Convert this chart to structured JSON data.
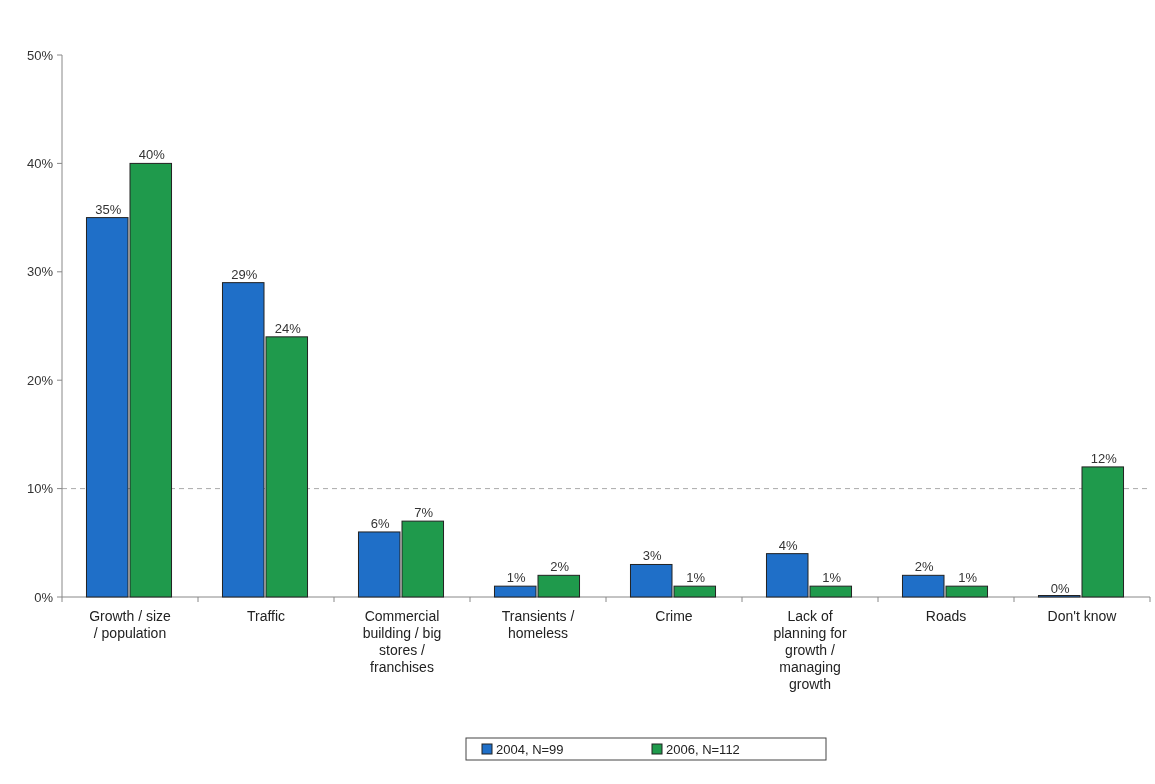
{
  "chart_data": {
    "type": "bar",
    "categories": [
      "Growth / size / population",
      "Traffic",
      "Commercial building / big stores / franchises",
      "Transients / homeless",
      "Crime",
      "Lack of planning for growth / managing growth",
      "Roads",
      "Don't know"
    ],
    "series": [
      {
        "name": "2004, N=99",
        "color": "#1f6fc8",
        "values": [
          35,
          29,
          6,
          1,
          3,
          4,
          2,
          0
        ],
        "value_labels": [
          "35%",
          "29%",
          "6%",
          "1%",
          "3%",
          "4%",
          "2%",
          "0%"
        ]
      },
      {
        "name": "2006, N=112",
        "color": "#1f9a4c",
        "values": [
          40,
          24,
          7,
          2,
          1,
          1,
          1,
          12
        ],
        "value_labels": [
          "40%",
          "24%",
          "7%",
          "2%",
          "1%",
          "1%",
          "1%",
          "12%"
        ]
      }
    ],
    "ylim": [
      0,
      50
    ],
    "yticks": [
      {
        "value": 0,
        "label": "0%"
      },
      {
        "value": 10,
        "label": "10%"
      },
      {
        "value": 20,
        "label": "20%"
      },
      {
        "value": 30,
        "label": "30%"
      },
      {
        "value": 40,
        "label": "40%"
      },
      {
        "value": 50,
        "label": "50%"
      }
    ],
    "ref_lines": [
      {
        "axis": "y",
        "value": 10,
        "color": "#aaaaaa",
        "line_style": "dashed"
      }
    ],
    "grid": false,
    "legend": "bottom"
  }
}
